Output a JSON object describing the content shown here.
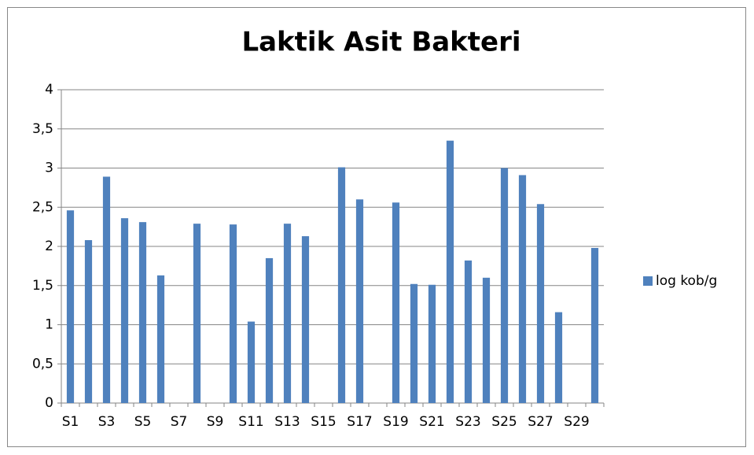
{
  "chart_data": {
    "type": "bar",
    "title": "Laktik Asit Bakteri",
    "categories": [
      "S1",
      null,
      "S3",
      null,
      "S5",
      null,
      "S7",
      null,
      "S9",
      null,
      "S11",
      null,
      "S13",
      null,
      "S15",
      null,
      "S17",
      null,
      "S19",
      null,
      "S21",
      null,
      "S23",
      null,
      "S25",
      null,
      "S27",
      null,
      "S29",
      null
    ],
    "series": [
      {
        "name": "log kob/g",
        "color": "#4f81bd",
        "values": [
          2.46,
          2.08,
          2.89,
          2.36,
          2.31,
          1.63,
          0,
          2.29,
          0,
          2.28,
          1.04,
          1.85,
          2.29,
          2.13,
          0,
          3.01,
          2.6,
          0,
          2.56,
          1.52,
          1.51,
          3.35,
          1.82,
          1.6,
          3.0,
          2.91,
          2.54,
          1.16,
          0,
          1.98
        ]
      }
    ],
    "ylim": [
      0,
      4
    ],
    "yticks": [
      0,
      {
        "value": 0.5,
        "label": "0,5"
      },
      1,
      {
        "value": 1.5,
        "label": "1,5"
      },
      2,
      {
        "value": 2.5,
        "label": "2,5"
      },
      3,
      {
        "value": 3.5,
        "label": "3,5"
      },
      4
    ],
    "grid": true,
    "legend": "right"
  }
}
